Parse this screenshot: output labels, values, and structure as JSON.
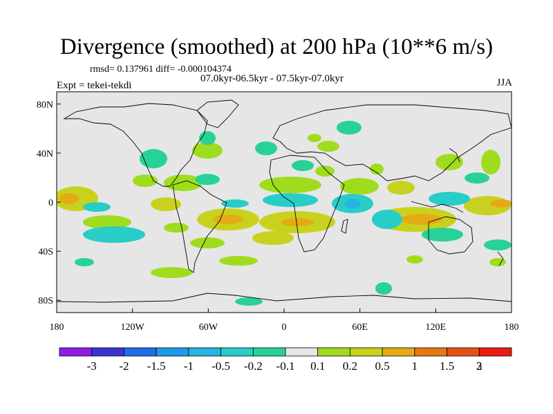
{
  "title": "Divergence (smoothed) at 200 hPa (10**6 m/s)",
  "stats": "rmsd= 0.137961 diff= -0.000104374",
  "period": "07.0kyr-06.5kyr - 07.5kyr-07.0kyr",
  "experiment": "Expt = tekei-tekdi",
  "season": "JJA",
  "map": {
    "projection": "cylindrical-equidistant",
    "lon_range": [
      -180,
      180
    ],
    "lat_range": [
      -90,
      90
    ],
    "x_ticks": [
      "180",
      "120W",
      "60W",
      "0",
      "60E",
      "120E",
      "180"
    ],
    "y_ticks": [
      "80N",
      "40N",
      "0",
      "40S",
      "80S"
    ],
    "background_color": "#e6e6e6"
  },
  "colorbar": {
    "labels": [
      "-3",
      "-2",
      "-1.5",
      "-1",
      "-0.5",
      "-0.2",
      "-0.1",
      "0.1",
      "0.2",
      "0.5",
      "1",
      "1.5",
      "2",
      "3"
    ],
    "colors": [
      "#8c1ee6",
      "#3c32d2",
      "#1e6ee6",
      "#1e9be6",
      "#28b4dc",
      "#28cdc8",
      "#28d296",
      "#e6e6e6",
      "#a0dc1e",
      "#c8d21e",
      "#e6aa14",
      "#e67814",
      "#e65014",
      "#e61e14"
    ]
  }
}
